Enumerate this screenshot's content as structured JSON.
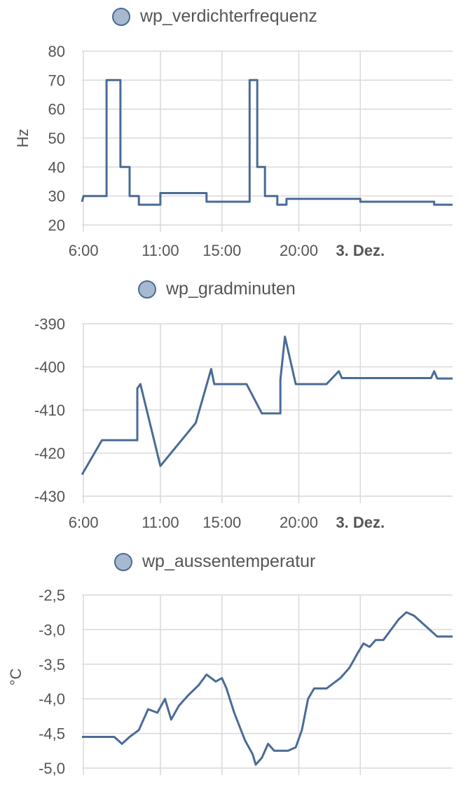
{
  "color_series": "#4a6b96",
  "chart_data": [
    {
      "type": "line",
      "legend": "wp_verdichterfrequenz",
      "ylabel": "Hz",
      "xlabel": "",
      "ylim": [
        20,
        80
      ],
      "yticks": [
        "80",
        "70",
        "60",
        "50",
        "40",
        "30",
        "20"
      ],
      "xticks": [
        "6:00",
        "11:00",
        "15:00",
        "20:00",
        "3. Dez."
      ],
      "x_hours": [
        5.9,
        6.0,
        7.5,
        7.5,
        8.4,
        8.4,
        9.0,
        9.0,
        9.6,
        9.6,
        11.0,
        11.0,
        14.0,
        14.0,
        14.3,
        14.3,
        16.8,
        16.8,
        17.3,
        17.3,
        17.8,
        17.8,
        18.6,
        18.6,
        19.2,
        19.2,
        19.8,
        19.8,
        21.5,
        24.0,
        24.0,
        26.0,
        28.8,
        28.8,
        30.0
      ],
      "values": [
        28,
        30,
        30,
        70,
        70,
        40,
        40,
        30,
        30,
        27,
        27,
        31,
        31,
        28,
        28,
        28,
        28,
        70,
        70,
        40,
        40,
        30,
        30,
        27,
        27,
        29,
        29,
        29,
        29,
        29,
        28,
        28,
        28,
        27,
        27
      ]
    },
    {
      "type": "line",
      "legend": "wp_gradminuten",
      "ylabel": "",
      "xlabel": "",
      "ylim": [
        -430,
        -390
      ],
      "yticks": [
        "-390",
        "-400",
        "-410",
        "-420",
        "-430"
      ],
      "xticks": [
        "6:00",
        "11:00",
        "15:00",
        "20:00",
        "3. Dez."
      ],
      "x_hours": [
        5.9,
        7.2,
        9.5,
        9.5,
        9.7,
        11.0,
        13.3,
        14.3,
        14.5,
        16.6,
        17.6,
        18.8,
        18.8,
        19.1,
        19.8,
        21.8,
        21.8,
        22.6,
        22.8,
        25.0,
        28.6,
        28.8,
        29.0,
        30.0
      ],
      "values": [
        -425,
        -417,
        -417,
        -405,
        -404,
        -423,
        -413,
        -400.5,
        -404,
        -404,
        -410.8,
        -410.8,
        -403,
        -393,
        -404,
        -404,
        -404,
        -401,
        -402.6,
        -402.6,
        -402.6,
        -401,
        -402.7,
        -402.7
      ]
    },
    {
      "type": "line",
      "legend": "wp_aussentemperatur",
      "ylabel": "°C",
      "xlabel": "",
      "ylim": [
        -5.0,
        -2.5
      ],
      "yticks": [
        "-2,5",
        "-3,0",
        "-3,5",
        "-4,0",
        "-4,5",
        "-5,0"
      ],
      "xticks": [],
      "x_hours": [
        5.9,
        8.0,
        8.5,
        9.0,
        9.6,
        10.2,
        10.8,
        11.3,
        11.7,
        12.2,
        12.8,
        13.5,
        14.0,
        14.6,
        15.0,
        15.3,
        15.8,
        16.5,
        17.0,
        17.2,
        17.6,
        18.0,
        18.4,
        18.8,
        19.3,
        19.8,
        20.2,
        20.6,
        21.0,
        21.4,
        21.8,
        22.1,
        22.7,
        23.3,
        23.8,
        24.2,
        24.6,
        25.0,
        25.5,
        26.0,
        26.5,
        27.0,
        27.5,
        28.0,
        28.5,
        29.0,
        29.4,
        30.0
      ],
      "values": [
        -4.55,
        -4.55,
        -4.65,
        -4.55,
        -4.45,
        -4.15,
        -4.2,
        -4.0,
        -4.3,
        -4.1,
        -3.95,
        -3.8,
        -3.65,
        -3.75,
        -3.7,
        -3.85,
        -4.2,
        -4.6,
        -4.8,
        -4.95,
        -4.85,
        -4.65,
        -4.75,
        -4.75,
        -4.75,
        -4.7,
        -4.45,
        -4.0,
        -3.85,
        -3.85,
        -3.85,
        -3.8,
        -3.7,
        -3.55,
        -3.35,
        -3.2,
        -3.25,
        -3.15,
        -3.15,
        -3.0,
        -2.85,
        -2.75,
        -2.8,
        -2.9,
        -3.0,
        -3.1,
        -3.1,
        -3.1
      ]
    }
  ]
}
